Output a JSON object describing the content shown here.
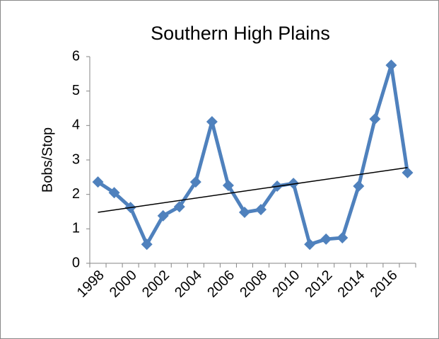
{
  "chart_data": {
    "type": "line",
    "title": "Southern High Plains",
    "y_label": "Bobs/Stop",
    "categories": [
      "1998",
      null,
      "2000",
      null,
      "2002",
      null,
      "2004",
      null,
      "2006",
      null,
      "2008",
      null,
      "2010",
      null,
      "2012",
      null,
      "2014",
      null,
      "2016",
      null
    ],
    "series": [
      {
        "name": "Bobs/Stop",
        "color": "#4f81bd",
        "values": [
          2.36,
          2.05,
          1.62,
          0.55,
          1.38,
          1.64,
          2.36,
          4.11,
          2.26,
          1.48,
          1.56,
          2.24,
          2.32,
          0.55,
          0.7,
          0.74,
          2.24,
          4.19,
          5.75,
          2.63
        ]
      }
    ],
    "trendline": {
      "color": "#000000",
      "values": [
        1.48,
        2.78
      ]
    },
    "ylim": [
      0,
      6
    ],
    "yticks": [
      0,
      1,
      2,
      3,
      4,
      5,
      6
    ],
    "grid": false
  }
}
